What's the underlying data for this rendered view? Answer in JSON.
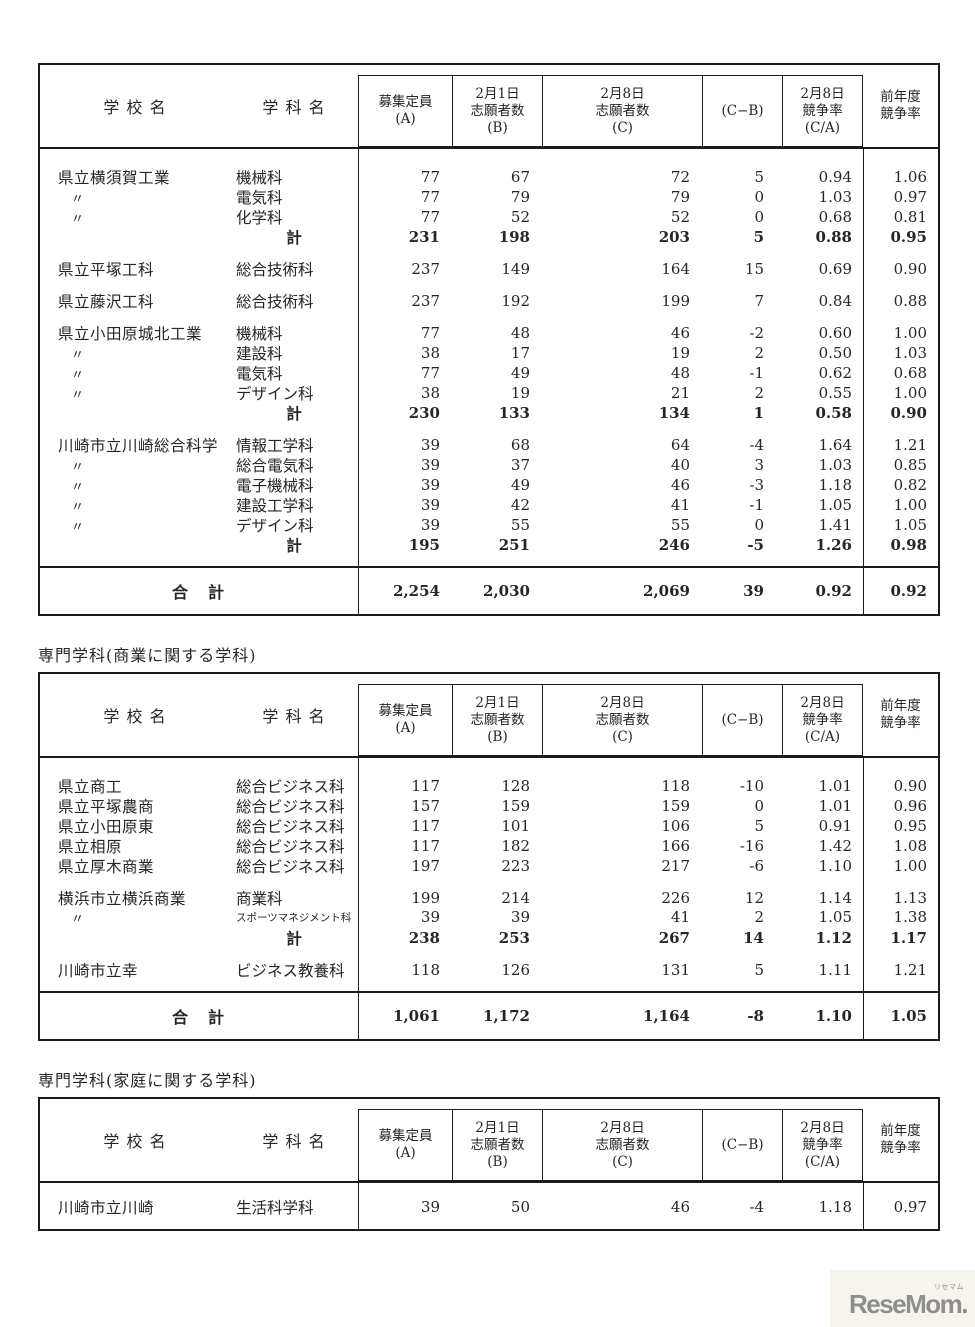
{
  "columns": {
    "school": "学 校 名",
    "dept": "学 科 名",
    "boxes": [
      {
        "lines": [
          "募集定員",
          "(A)"
        ]
      },
      {
        "lines": [
          "2月1日",
          "志願者数",
          "(B)"
        ]
      },
      {
        "lines": [
          "2月8日",
          "志願者数",
          "(C)"
        ]
      },
      {
        "lines": [
          "(C−B)"
        ]
      },
      {
        "lines": [
          "2月8日",
          "競争率",
          "(C/A)"
        ]
      }
    ],
    "prev": [
      "前年度",
      "競争率"
    ]
  },
  "tables": [
    {
      "id": "industrial",
      "title": "",
      "groups": [
        {
          "rows": [
            {
              "school": "県立横須賀工業",
              "dept": "機械科",
              "values": [
                "77",
                "67",
                "72",
                "5",
                "0.94",
                "1.06"
              ]
            },
            {
              "school": "〃",
              "dept": "電気科",
              "values": [
                "77",
                "79",
                "79",
                "0",
                "1.03",
                "0.97"
              ]
            },
            {
              "school": "〃",
              "dept": "化学科",
              "values": [
                "77",
                "52",
                "52",
                "0",
                "0.68",
                "0.81"
              ]
            },
            {
              "subtotal": true,
              "school": "",
              "dept": "計",
              "values": [
                "231",
                "198",
                "203",
                "5",
                "0.88",
                "0.95"
              ]
            }
          ]
        },
        {
          "rows": [
            {
              "school": "県立平塚工科",
              "dept": "総合技術科",
              "values": [
                "237",
                "149",
                "164",
                "15",
                "0.69",
                "0.90"
              ]
            }
          ]
        },
        {
          "rows": [
            {
              "school": "県立藤沢工科",
              "dept": "総合技術科",
              "values": [
                "237",
                "192",
                "199",
                "7",
                "0.84",
                "0.88"
              ]
            }
          ]
        },
        {
          "rows": [
            {
              "school": "県立小田原城北工業",
              "dept": "機械科",
              "values": [
                "77",
                "48",
                "46",
                "-2",
                "0.60",
                "1.00"
              ]
            },
            {
              "school": "〃",
              "dept": "建設科",
              "values": [
                "38",
                "17",
                "19",
                "2",
                "0.50",
                "1.03"
              ]
            },
            {
              "school": "〃",
              "dept": "電気科",
              "values": [
                "77",
                "49",
                "48",
                "-1",
                "0.62",
                "0.68"
              ]
            },
            {
              "school": "〃",
              "dept": "デザイン科",
              "values": [
                "38",
                "19",
                "21",
                "2",
                "0.55",
                "1.00"
              ]
            },
            {
              "subtotal": true,
              "school": "",
              "dept": "計",
              "values": [
                "230",
                "133",
                "134",
                "1",
                "0.58",
                "0.90"
              ]
            }
          ]
        },
        {
          "rows": [
            {
              "school": "川崎市立川崎総合科学",
              "dept": "情報工学科",
              "values": [
                "39",
                "68",
                "64",
                "-4",
                "1.64",
                "1.21"
              ]
            },
            {
              "school": "〃",
              "dept": "総合電気科",
              "values": [
                "39",
                "37",
                "40",
                "3",
                "1.03",
                "0.85"
              ]
            },
            {
              "school": "〃",
              "dept": "電子機械科",
              "values": [
                "39",
                "49",
                "46",
                "-3",
                "1.18",
                "0.82"
              ]
            },
            {
              "school": "〃",
              "dept": "建設工学科",
              "values": [
                "39",
                "42",
                "41",
                "-1",
                "1.05",
                "1.00"
              ]
            },
            {
              "school": "〃",
              "dept": "デザイン科",
              "values": [
                "39",
                "55",
                "55",
                "0",
                "1.41",
                "1.05"
              ]
            },
            {
              "subtotal": true,
              "school": "",
              "dept": "計",
              "values": [
                "195",
                "251",
                "246",
                "-5",
                "1.26",
                "0.98"
              ]
            }
          ]
        }
      ],
      "total": {
        "label": "合　計",
        "values": [
          "2,254",
          "2,030",
          "2,069",
          "39",
          "0.92",
          "0.92"
        ]
      }
    },
    {
      "id": "commercial",
      "title": "専門学科(商業に関する学科)",
      "groups": [
        {
          "rows": [
            {
              "school": "県立商工",
              "dept": "総合ビジネス科",
              "values": [
                "117",
                "128",
                "118",
                "-10",
                "1.01",
                "0.90"
              ]
            },
            {
              "school": "県立平塚農商",
              "dept": "総合ビジネス科",
              "values": [
                "157",
                "159",
                "159",
                "0",
                "1.01",
                "0.96"
              ]
            },
            {
              "school": "県立小田原東",
              "dept": "総合ビジネス科",
              "values": [
                "117",
                "101",
                "106",
                "5",
                "0.91",
                "0.95"
              ]
            },
            {
              "school": "県立相原",
              "dept": "総合ビジネス科",
              "values": [
                "117",
                "182",
                "166",
                "-16",
                "1.42",
                "1.08"
              ]
            },
            {
              "school": "県立厚木商業",
              "dept": "総合ビジネス科",
              "values": [
                "197",
                "223",
                "217",
                "-6",
                "1.10",
                "1.00"
              ]
            }
          ]
        },
        {
          "rows": [
            {
              "school": "横浜市立横浜商業",
              "dept": "商業科",
              "values": [
                "199",
                "214",
                "226",
                "12",
                "1.14",
                "1.13"
              ]
            },
            {
              "school": "〃",
              "dept": "スポーツマネジメント科",
              "dept_small": true,
              "values": [
                "39",
                "39",
                "41",
                "2",
                "1.05",
                "1.38"
              ]
            },
            {
              "subtotal": true,
              "school": "",
              "dept": "計",
              "values": [
                "238",
                "253",
                "267",
                "14",
                "1.12",
                "1.17"
              ]
            }
          ]
        },
        {
          "rows": [
            {
              "school": "川崎市立幸",
              "dept": "ビジネス教養科",
              "values": [
                "118",
                "126",
                "131",
                "5",
                "1.11",
                "1.21"
              ]
            }
          ]
        }
      ],
      "total": {
        "label": "合　計",
        "values": [
          "1,061",
          "1,172",
          "1,164",
          "-8",
          "1.10",
          "1.05"
        ]
      }
    },
    {
      "id": "home-economics",
      "title": "専門学科(家庭に関する学科)",
      "groups": [
        {
          "rows": [
            {
              "school": "川崎市立川崎",
              "dept": "生活科学科",
              "values": [
                "39",
                "50",
                "46",
                "-4",
                "1.18",
                "0.97"
              ]
            }
          ]
        }
      ],
      "total": null
    }
  ],
  "logo": {
    "text": "ReseMom.",
    "ruby": "リセマム",
    "color": "#8e8e8e"
  }
}
